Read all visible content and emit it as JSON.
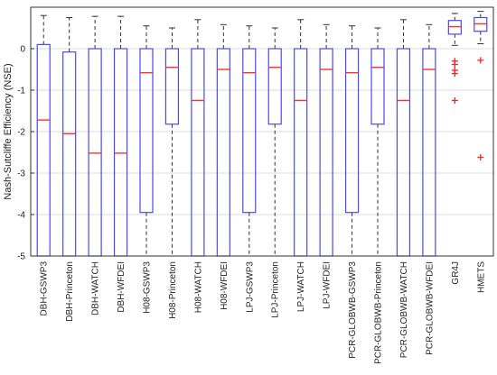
{
  "chart_data": {
    "type": "boxplot",
    "title": "",
    "xlabel": "",
    "ylabel": "Nash-Sutcliffe Efficiency (NSE)",
    "ylim": [
      -5,
      1
    ],
    "yticks": [
      -5,
      -4,
      -3,
      -2,
      -1,
      0
    ],
    "grid": "horizontal",
    "colors": {
      "box": "#4a4af0",
      "median": "#ff3030",
      "whisker": "#333333",
      "outlier": "#ff2020",
      "grid": "#dddddd"
    },
    "series": [
      {
        "name": "DBH-GSWP3",
        "whisker_low": -5,
        "q1": -5,
        "median": -1.72,
        "q3": 0.1,
        "whisker_high": 0.8,
        "outliers": []
      },
      {
        "name": "DBH-Princeton",
        "whisker_low": -5,
        "q1": -5,
        "median": -2.05,
        "q3": -0.08,
        "whisker_high": 0.75,
        "outliers": []
      },
      {
        "name": "DBH-WATCH",
        "whisker_low": -5,
        "q1": -5,
        "median": -2.52,
        "q3": 0.0,
        "whisker_high": 0.78,
        "outliers": []
      },
      {
        "name": "DBH-WFDEI",
        "whisker_low": -5,
        "q1": -5,
        "median": -2.52,
        "q3": 0.0,
        "whisker_high": 0.78,
        "outliers": []
      },
      {
        "name": "H08-GSWP3",
        "whisker_low": -5,
        "q1": -3.95,
        "median": -0.58,
        "q3": 0.0,
        "whisker_high": 0.55,
        "outliers": []
      },
      {
        "name": "H08-Princeton",
        "whisker_low": -5,
        "q1": -1.82,
        "median": -0.45,
        "q3": 0.0,
        "whisker_high": 0.5,
        "outliers": []
      },
      {
        "name": "H08-WATCH",
        "whisker_low": -5,
        "q1": -5,
        "median": -1.25,
        "q3": 0.0,
        "whisker_high": 0.7,
        "outliers": []
      },
      {
        "name": "H08-WFDEI",
        "whisker_low": -5,
        "q1": -5,
        "median": -0.5,
        "q3": 0.0,
        "whisker_high": 0.58,
        "outliers": []
      },
      {
        "name": "LPJ-GSWP3",
        "whisker_low": -5,
        "q1": -3.95,
        "median": -0.58,
        "q3": 0.0,
        "whisker_high": 0.55,
        "outliers": []
      },
      {
        "name": "LPJ-Princeton",
        "whisker_low": -5,
        "q1": -1.82,
        "median": -0.45,
        "q3": 0.0,
        "whisker_high": 0.5,
        "outliers": []
      },
      {
        "name": "LPJ-WATCH",
        "whisker_low": -5,
        "q1": -5,
        "median": -1.25,
        "q3": 0.0,
        "whisker_high": 0.7,
        "outliers": []
      },
      {
        "name": "LPJ-WFDEI",
        "whisker_low": -5,
        "q1": -5,
        "median": -0.5,
        "q3": 0.0,
        "whisker_high": 0.58,
        "outliers": []
      },
      {
        "name": "PCR-GLOBWB-GSWP3",
        "whisker_low": -5,
        "q1": -3.95,
        "median": -0.58,
        "q3": 0.0,
        "whisker_high": 0.55,
        "outliers": []
      },
      {
        "name": "PCR-GLOBWB-Princeton",
        "whisker_low": -5,
        "q1": -1.82,
        "median": -0.45,
        "q3": 0.0,
        "whisker_high": 0.5,
        "outliers": []
      },
      {
        "name": "PCR-GLOBWB-WATCH",
        "whisker_low": -5,
        "q1": -5,
        "median": -1.25,
        "q3": 0.0,
        "whisker_high": 0.7,
        "outliers": []
      },
      {
        "name": "PCR-GLOBWB-WFDEI",
        "whisker_low": -5,
        "q1": -5,
        "median": -0.5,
        "q3": 0.0,
        "whisker_high": 0.58,
        "outliers": []
      },
      {
        "name": "GR4J",
        "whisker_low": 0.08,
        "q1": 0.35,
        "median": 0.53,
        "q3": 0.68,
        "whisker_high": 0.85,
        "outliers": [
          -0.3,
          -0.38,
          -0.52,
          -0.6,
          -1.25
        ]
      },
      {
        "name": "HMETS",
        "whisker_low": 0.12,
        "q1": 0.42,
        "median": 0.6,
        "q3": 0.75,
        "whisker_high": 0.9,
        "outliers": [
          -0.28,
          -2.62
        ]
      }
    ]
  }
}
